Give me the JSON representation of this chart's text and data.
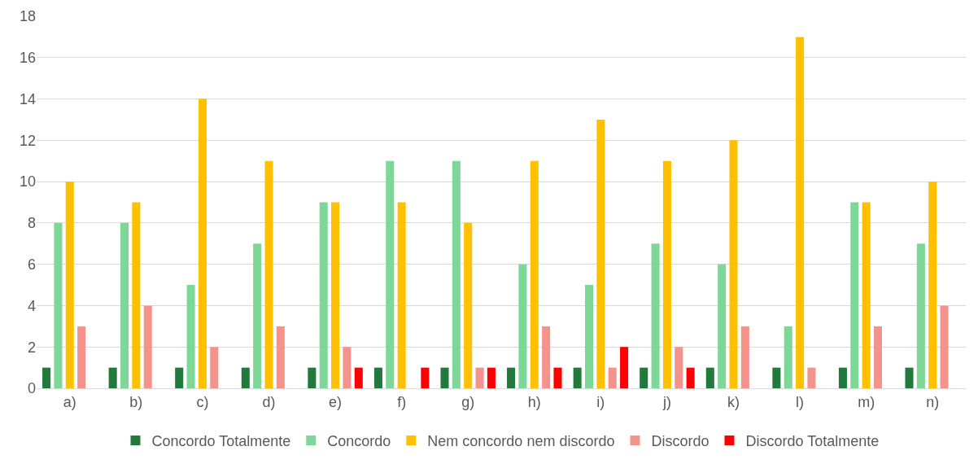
{
  "chart_data": {
    "type": "bar",
    "categories": [
      "a)",
      "b)",
      "c)",
      "d)",
      "e)",
      "f)",
      "g)",
      "h)",
      "i)",
      "j)",
      "k)",
      "l)",
      "m)",
      "n)"
    ],
    "series": [
      {
        "name": "Concordo Totalmente",
        "color": "#217a3c",
        "values": [
          1,
          1,
          1,
          1,
          1,
          1,
          1,
          1,
          1,
          1,
          1,
          1,
          1,
          1
        ]
      },
      {
        "name": "Concordo",
        "color": "#7dd897",
        "values": [
          8,
          8,
          5,
          7,
          9,
          11,
          11,
          6,
          5,
          7,
          6,
          3,
          9,
          7
        ]
      },
      {
        "name": "Nem concordo nem discordo",
        "color": "#ffc000",
        "values": [
          10,
          9,
          14,
          11,
          9,
          9,
          8,
          11,
          13,
          11,
          12,
          17,
          9,
          10
        ]
      },
      {
        "name": "Discordo",
        "color": "#f4938b",
        "values": [
          3,
          4,
          2,
          3,
          2,
          0,
          1,
          3,
          1,
          2,
          3,
          1,
          3,
          4
        ]
      },
      {
        "name": "Discordo Totalmente",
        "color": "#ff0000",
        "values": [
          0,
          0,
          0,
          0,
          1,
          1,
          1,
          1,
          2,
          1,
          0,
          0,
          0,
          0
        ]
      }
    ],
    "ylim": [
      0,
      18
    ],
    "yticks": [
      0,
      2,
      4,
      6,
      8,
      10,
      12,
      14,
      16,
      18
    ],
    "grid": "y",
    "legend": "bottom"
  }
}
